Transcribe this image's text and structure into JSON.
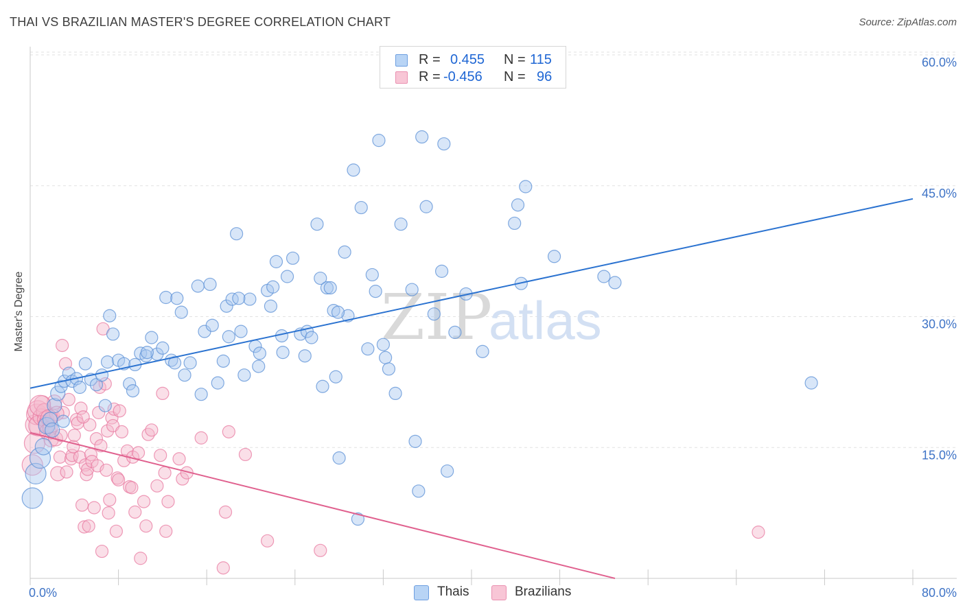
{
  "title": "THAI VS BRAZILIAN MASTER'S DEGREE CORRELATION CHART",
  "source": "Source: ZipAtlas.com",
  "watermark": {
    "zip": "ZIP",
    "atlas": "atlas"
  },
  "legend_top": [
    {
      "r_label": "R =",
      "r_value": "0.455",
      "n_label": "N =",
      "n_value": "115"
    },
    {
      "r_label": "R =",
      "r_value": "-0.456",
      "n_label": "N =",
      "n_value": "96"
    }
  ],
  "legend_bottom": [
    {
      "label": "Thais"
    },
    {
      "label": "Brazilians"
    }
  ],
  "colors": {
    "blue_fill": "#a8c8f0",
    "blue_stroke": "#5a8fd6",
    "blue_line": "#2a72d0",
    "pink_fill": "#f5b8cc",
    "pink_stroke": "#e87aa0",
    "pink_line": "#e0608e",
    "tick_label": "#3e73c6",
    "grid": "#e2e2e2"
  },
  "chart_data": {
    "type": "scatter",
    "title": "THAI VS BRAZILIAN MASTER'S DEGREE CORRELATION CHART",
    "xlabel": "",
    "ylabel": "Master's Degree",
    "xlim": [
      0,
      80
    ],
    "ylim": [
      0,
      60
    ],
    "x_tick_labels": [
      "0.0%",
      "80.0%"
    ],
    "y_ticks": [
      15,
      30,
      45,
      60
    ],
    "y_tick_labels": [
      "15.0%",
      "30.0%",
      "45.0%",
      "60.0%"
    ],
    "grid": true,
    "legend_position": "top-center",
    "series": [
      {
        "name": "Thais",
        "r": 0.455,
        "n": 115,
        "trend": {
          "x": [
            0,
            80
          ],
          "y": [
            21.8,
            43.5
          ]
        },
        "points": [
          [
            0.2,
            9.2
          ],
          [
            0.5,
            12.0
          ],
          [
            0.9,
            13.8
          ],
          [
            1.2,
            15.1
          ],
          [
            1.5,
            17.5
          ],
          [
            1.8,
            18.2
          ],
          [
            2.2,
            19.8
          ],
          [
            2.5,
            21.2
          ],
          [
            2.8,
            22.0
          ],
          [
            3.1,
            22.6
          ],
          [
            3.5,
            23.5
          ],
          [
            3.8,
            22.6
          ],
          [
            4.2,
            22.9
          ],
          [
            4.5,
            21.9
          ],
          [
            5.0,
            24.6
          ],
          [
            5.5,
            22.8
          ],
          [
            6.0,
            22.2
          ],
          [
            6.5,
            23.3
          ],
          [
            7.0,
            24.8
          ],
          [
            7.5,
            28.0
          ],
          [
            7.2,
            30.1
          ],
          [
            8.0,
            25.0
          ],
          [
            8.5,
            24.6
          ],
          [
            9.0,
            22.3
          ],
          [
            9.5,
            24.5
          ],
          [
            10.0,
            25.8
          ],
          [
            10.5,
            25.5
          ],
          [
            11.0,
            27.6
          ],
          [
            11.5,
            25.7
          ],
          [
            12.0,
            26.4
          ],
          [
            12.3,
            32.2
          ],
          [
            12.8,
            25.0
          ],
          [
            13.3,
            32.1
          ],
          [
            13.7,
            30.5
          ],
          [
            14.0,
            23.3
          ],
          [
            14.5,
            24.7
          ],
          [
            15.2,
            33.5
          ],
          [
            15.5,
            21.1
          ],
          [
            15.8,
            28.3
          ],
          [
            16.3,
            33.7
          ],
          [
            16.5,
            29.0
          ],
          [
            17.0,
            22.4
          ],
          [
            17.5,
            24.9
          ],
          [
            17.8,
            31.2
          ],
          [
            18.0,
            27.7
          ],
          [
            18.3,
            32.0
          ],
          [
            18.7,
            39.5
          ],
          [
            19.1,
            28.3
          ],
          [
            19.4,
            23.3
          ],
          [
            19.9,
            32.0
          ],
          [
            20.4,
            26.6
          ],
          [
            20.7,
            24.3
          ],
          [
            20.8,
            25.8
          ],
          [
            21.5,
            33.0
          ],
          [
            21.8,
            31.2
          ],
          [
            22.0,
            33.4
          ],
          [
            22.3,
            36.3
          ],
          [
            22.8,
            27.8
          ],
          [
            22.9,
            25.9
          ],
          [
            23.3,
            34.6
          ],
          [
            23.8,
            36.7
          ],
          [
            24.5,
            28.0
          ],
          [
            24.9,
            25.5
          ],
          [
            25.1,
            28.3
          ],
          [
            25.5,
            27.6
          ],
          [
            26.0,
            40.6
          ],
          [
            26.3,
            34.4
          ],
          [
            26.5,
            22.0
          ],
          [
            26.9,
            33.3
          ],
          [
            27.2,
            33.3
          ],
          [
            27.5,
            30.7
          ],
          [
            27.7,
            23.1
          ],
          [
            28.0,
            13.8
          ],
          [
            28.5,
            37.4
          ],
          [
            28.8,
            30.1
          ],
          [
            29.3,
            46.8
          ],
          [
            29.7,
            6.8
          ],
          [
            30.0,
            42.5
          ],
          [
            30.6,
            26.3
          ],
          [
            31.0,
            34.8
          ],
          [
            31.3,
            32.9
          ],
          [
            31.6,
            50.2
          ],
          [
            32.0,
            26.8
          ],
          [
            32.2,
            25.3
          ],
          [
            32.5,
            24.0
          ],
          [
            33.1,
            21.2
          ],
          [
            33.6,
            40.6
          ],
          [
            34.6,
            33.1
          ],
          [
            34.9,
            15.7
          ],
          [
            35.2,
            10.0
          ],
          [
            35.5,
            50.6
          ],
          [
            35.9,
            42.6
          ],
          [
            36.6,
            30.3
          ],
          [
            37.3,
            35.2
          ],
          [
            37.5,
            49.8
          ],
          [
            37.8,
            12.3
          ],
          [
            38.5,
            28.2
          ],
          [
            39.5,
            32.6
          ],
          [
            41.0,
            26.0
          ],
          [
            43.9,
            40.7
          ],
          [
            44.2,
            42.8
          ],
          [
            44.5,
            33.8
          ],
          [
            44.9,
            44.9
          ],
          [
            47.5,
            36.9
          ],
          [
            52.0,
            34.6
          ],
          [
            53.0,
            33.9
          ],
          [
            70.8,
            22.4
          ],
          [
            3.0,
            18.0
          ],
          [
            6.8,
            19.8
          ],
          [
            2.0,
            17.0
          ],
          [
            9.3,
            21.5
          ],
          [
            10.6,
            25.9
          ],
          [
            13.1,
            24.7
          ],
          [
            18.9,
            32.1
          ],
          [
            27.9,
            30.5
          ]
        ]
      },
      {
        "name": "Brazilians",
        "r": -0.456,
        "n": 96,
        "trend": {
          "x": [
            0,
            53
          ],
          "y": [
            16.7,
            0
          ]
        },
        "points": [
          [
            0.2,
            13.0
          ],
          [
            0.4,
            15.5
          ],
          [
            0.5,
            17.6
          ],
          [
            0.6,
            18.8
          ],
          [
            0.7,
            19.2
          ],
          [
            0.8,
            17.5
          ],
          [
            1.0,
            18.5
          ],
          [
            1.1,
            20.0
          ],
          [
            1.3,
            19.1
          ],
          [
            1.4,
            18.2
          ],
          [
            1.5,
            17.7
          ],
          [
            1.6,
            16.8
          ],
          [
            1.8,
            17.2
          ],
          [
            1.9,
            15.9
          ],
          [
            2.0,
            18.6
          ],
          [
            2.2,
            20.2
          ],
          [
            2.3,
            16.0
          ],
          [
            2.5,
            12.0
          ],
          [
            2.7,
            13.9
          ],
          [
            2.8,
            16.4
          ],
          [
            2.9,
            26.7
          ],
          [
            3.0,
            19.0
          ],
          [
            3.2,
            24.6
          ],
          [
            3.3,
            12.2
          ],
          [
            3.5,
            20.5
          ],
          [
            3.7,
            13.7
          ],
          [
            3.8,
            14.1
          ],
          [
            3.9,
            15.1
          ],
          [
            4.0,
            16.4
          ],
          [
            4.2,
            18.2
          ],
          [
            4.3,
            17.8
          ],
          [
            4.5,
            13.9
          ],
          [
            4.6,
            19.5
          ],
          [
            4.7,
            8.4
          ],
          [
            4.9,
            5.9
          ],
          [
            5.0,
            13.0
          ],
          [
            5.1,
            11.9
          ],
          [
            5.2,
            12.5
          ],
          [
            5.3,
            6.0
          ],
          [
            5.4,
            17.6
          ],
          [
            5.5,
            14.2
          ],
          [
            5.6,
            13.4
          ],
          [
            5.8,
            8.1
          ],
          [
            6.0,
            16.0
          ],
          [
            6.1,
            12.9
          ],
          [
            6.2,
            19.0
          ],
          [
            6.3,
            21.9
          ],
          [
            6.4,
            15.2
          ],
          [
            6.5,
            3.1
          ],
          [
            6.6,
            28.6
          ],
          [
            6.8,
            22.3
          ],
          [
            6.9,
            12.4
          ],
          [
            7.0,
            16.9
          ],
          [
            7.1,
            7.5
          ],
          [
            7.2,
            9.0
          ],
          [
            7.4,
            18.4
          ],
          [
            7.5,
            17.5
          ],
          [
            7.6,
            19.4
          ],
          [
            7.8,
            5.4
          ],
          [
            7.9,
            11.5
          ],
          [
            8.0,
            11.3
          ],
          [
            8.1,
            19.2
          ],
          [
            8.3,
            16.8
          ],
          [
            8.5,
            13.5
          ],
          [
            8.8,
            14.6
          ],
          [
            9.0,
            10.5
          ],
          [
            9.2,
            10.4
          ],
          [
            9.3,
            13.9
          ],
          [
            9.5,
            7.6
          ],
          [
            9.8,
            14.4
          ],
          [
            10.0,
            2.3
          ],
          [
            10.3,
            8.8
          ],
          [
            10.5,
            6.0
          ],
          [
            10.7,
            16.5
          ],
          [
            11.0,
            17.0
          ],
          [
            11.5,
            10.6
          ],
          [
            11.8,
            14.1
          ],
          [
            12.0,
            21.2
          ],
          [
            12.2,
            12.1
          ],
          [
            12.3,
            5.4
          ],
          [
            12.5,
            8.8
          ],
          [
            13.5,
            13.7
          ],
          [
            13.8,
            11.4
          ],
          [
            14.2,
            12.1
          ],
          [
            15.5,
            16.1
          ],
          [
            17.5,
            1.2
          ],
          [
            17.7,
            7.6
          ],
          [
            18.0,
            16.8
          ],
          [
            19.5,
            14.2
          ],
          [
            21.5,
            4.3
          ],
          [
            26.3,
            3.2
          ],
          [
            66.0,
            5.3
          ],
          [
            2.4,
            18.9
          ],
          [
            4.8,
            18.5
          ],
          [
            0.9,
            19.8
          ],
          [
            1.7,
            18.4
          ]
        ]
      }
    ]
  }
}
